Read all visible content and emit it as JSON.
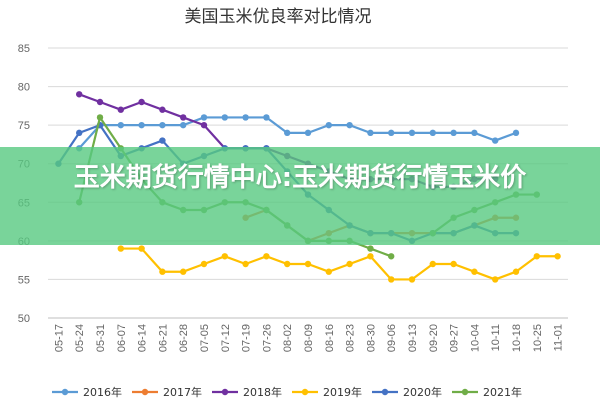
{
  "chart_data": {
    "type": "line",
    "title": "美国玉米优良率对比情况",
    "categories": [
      "05-17",
      "05-24",
      "05-31",
      "06-07",
      "06-14",
      "06-21",
      "06-28",
      "07-05",
      "07-12",
      "07-19",
      "07-26",
      "08-02",
      "08-09",
      "08-16",
      "08-23",
      "08-30",
      "09-06",
      "09-13",
      "09-20",
      "09-27",
      "10-04",
      "10-11",
      "10-18",
      "10-25",
      "11-01"
    ],
    "ylim": [
      50,
      85
    ],
    "yticks": [
      50,
      55,
      60,
      65,
      70,
      75,
      80,
      85
    ],
    "grid": "horizontal",
    "legend_position": "bottom",
    "series": [
      {
        "name": "2016年",
        "color": "#5B9BD5",
        "values": [
          null,
          72,
          75,
          75,
          75,
          75,
          75,
          76,
          76,
          76,
          76,
          74,
          74,
          75,
          75,
          74,
          74,
          74,
          74,
          74,
          74,
          73,
          74,
          null,
          null
        ]
      },
      {
        "name": "2017年",
        "color": "#ED7D31",
        "values": [
          null,
          null,
          null,
          null,
          null,
          null,
          null,
          null,
          null,
          63,
          64,
          62,
          60,
          61,
          62,
          61,
          61,
          61,
          61,
          61,
          62,
          63,
          63,
          null,
          null
        ]
      },
      {
        "name": "2018年",
        "color": "#7030A0",
        "values": [
          null,
          79,
          78,
          77,
          78,
          77,
          76,
          75,
          72,
          72,
          72,
          71,
          70,
          69,
          68,
          68,
          68,
          68,
          67,
          67,
          68,
          68,
          null,
          null,
          null
        ]
      },
      {
        "name": "2019年",
        "color": "#FFC000",
        "values": [
          null,
          null,
          null,
          59,
          59,
          56,
          56,
          57,
          58,
          57,
          58,
          57,
          57,
          56,
          57,
          58,
          55,
          55,
          57,
          57,
          56,
          55,
          56,
          58,
          58
        ]
      },
      {
        "name": "2020年",
        "color": "#4472C4",
        "values": [
          70,
          74,
          75,
          71,
          72,
          73,
          70,
          71,
          72,
          72,
          72,
          69,
          66,
          64,
          62,
          61,
          61,
          60,
          61,
          61,
          62,
          61,
          61,
          null,
          null
        ]
      },
      {
        "name": "2021年",
        "color": "#70AD47",
        "values": [
          null,
          65,
          76,
          72,
          68,
          65,
          64,
          64,
          65,
          65,
          64,
          62,
          60,
          60,
          60,
          59,
          58,
          null,
          61,
          63,
          64,
          65,
          66,
          66,
          null
        ]
      }
    ]
  },
  "banner": {
    "text": "玉米期货行情中心:玉米期货行情玉米价"
  }
}
